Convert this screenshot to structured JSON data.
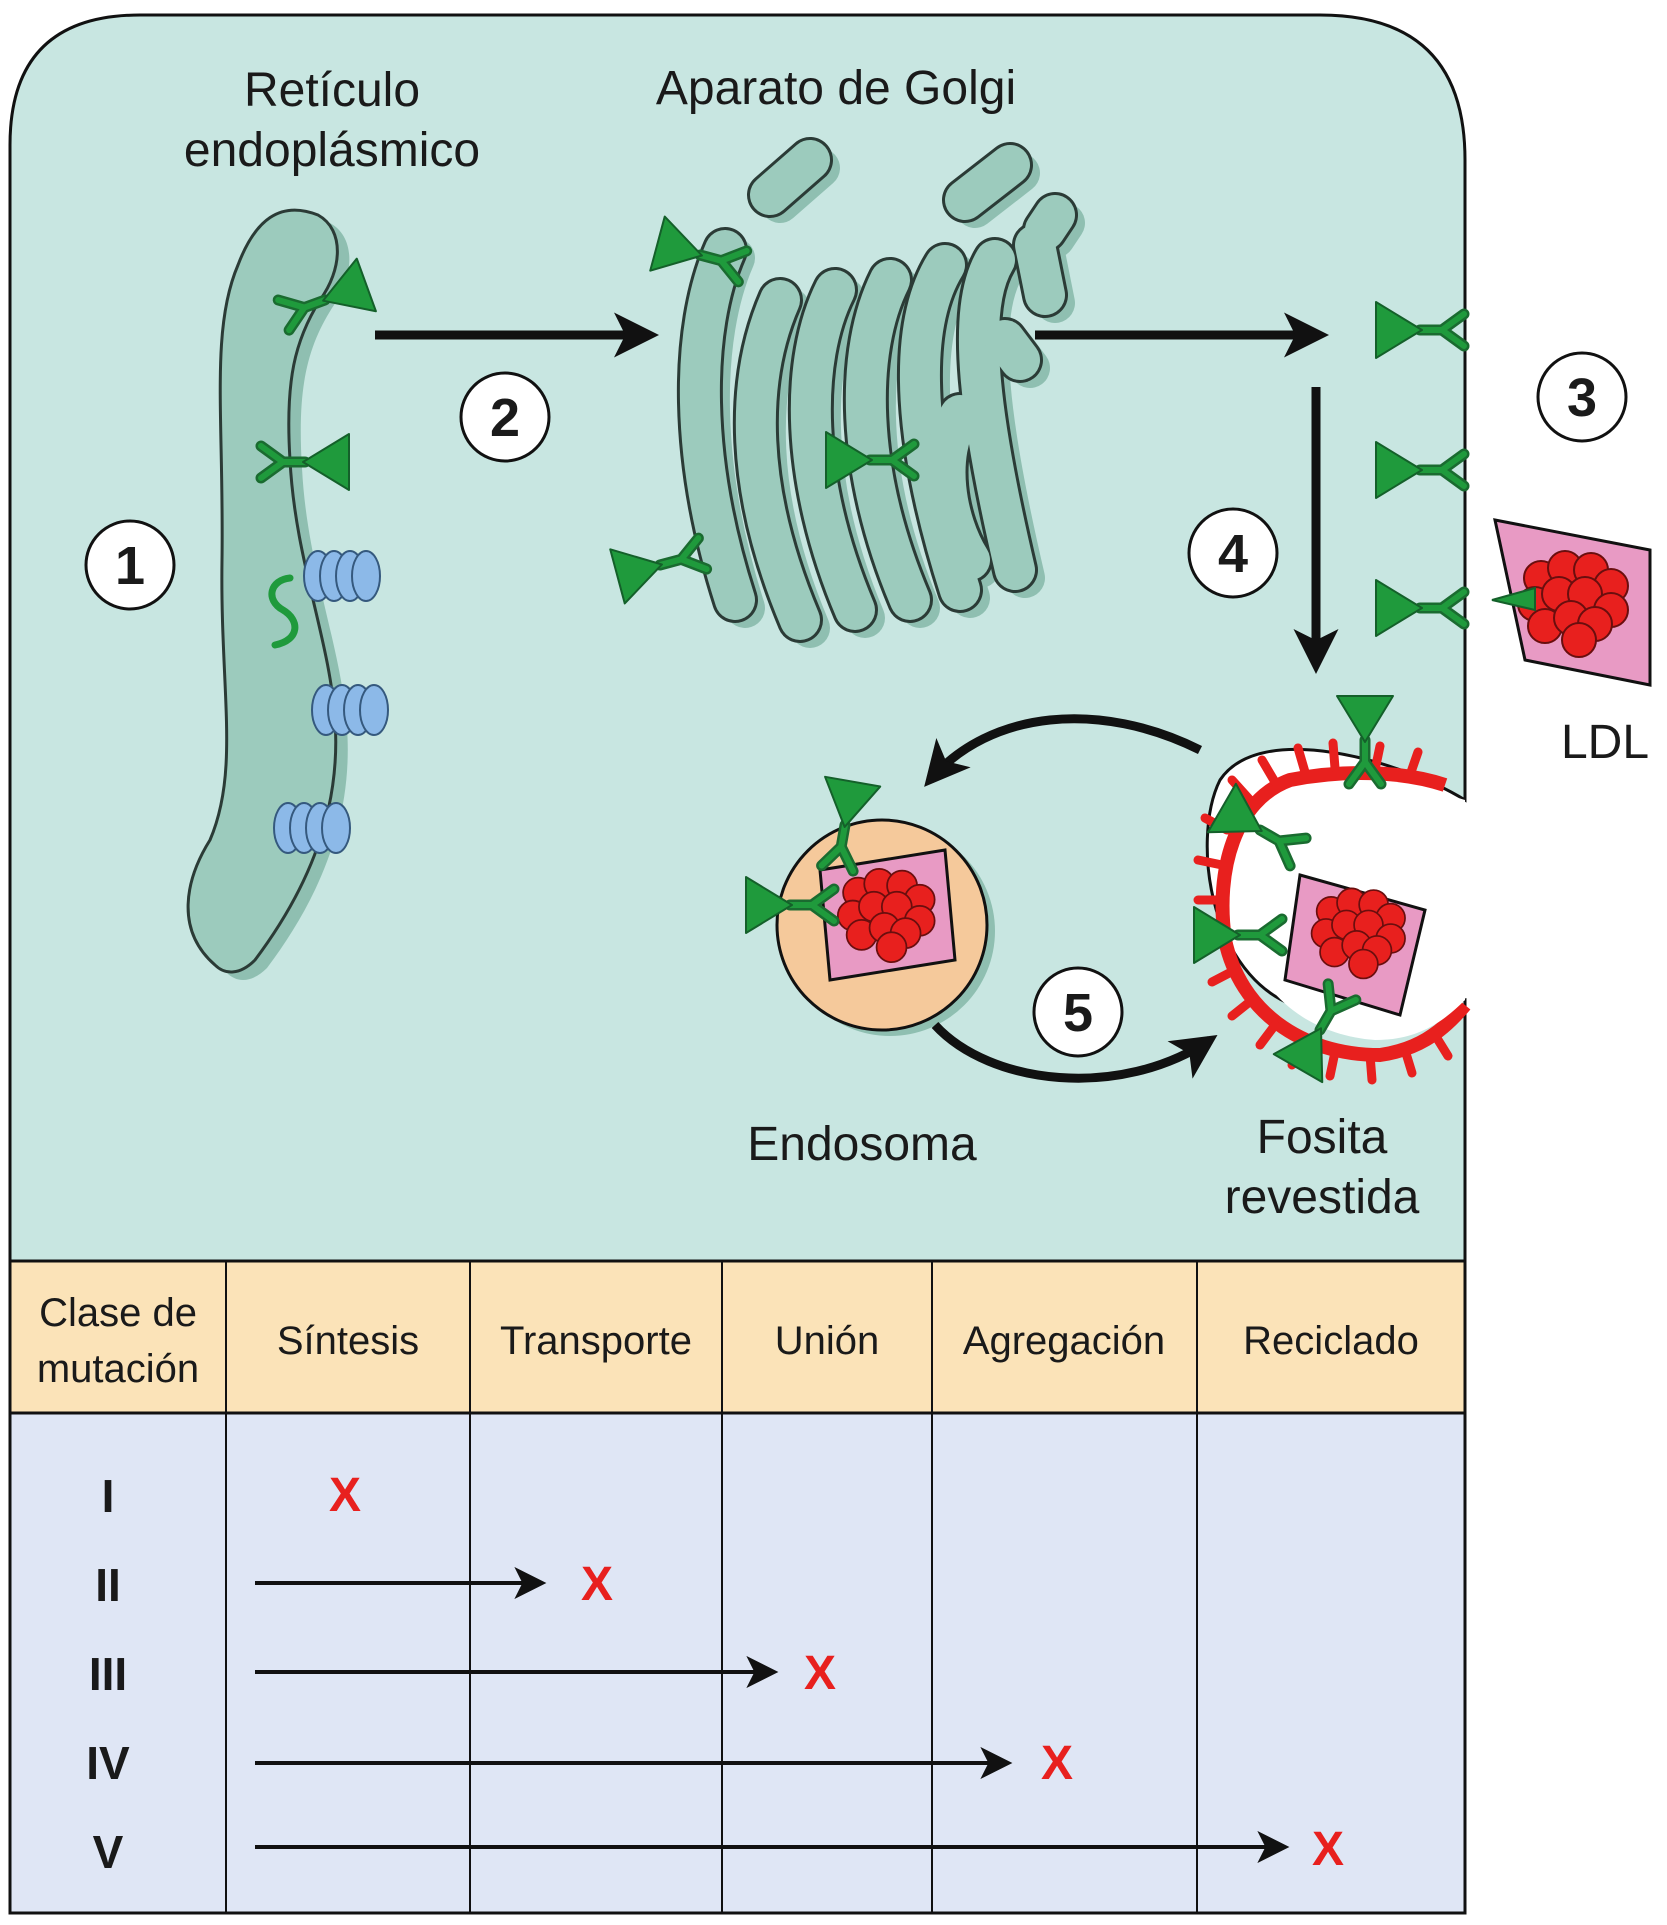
{
  "labels": {
    "er": [
      "Retículo",
      "endoplásmico"
    ],
    "golgi": "Aparato de Golgi",
    "ldl": "LDL",
    "endosome": "Endosoma",
    "pit": [
      "Fosita",
      "revestida"
    ]
  },
  "steps": [
    "1",
    "2",
    "3",
    "4",
    "5"
  ],
  "table": {
    "corner": [
      "Clase de",
      "mutación"
    ],
    "headers": [
      "Síntesis",
      "Transporte",
      "Unión",
      "Agregación",
      "Reciclado"
    ],
    "rows": [
      {
        "class": "I",
        "blocked_at": "Síntesis"
      },
      {
        "class": "II",
        "blocked_at": "Transporte"
      },
      {
        "class": "III",
        "blocked_at": "Unión"
      },
      {
        "class": "IV",
        "blocked_at": "Agregación"
      },
      {
        "class": "V",
        "blocked_at": "Reciclado"
      }
    ],
    "block_mark": "X"
  },
  "colors": {
    "cytoplasm": "#c8e6e1",
    "organelle": "#9ccbbd",
    "receptor": "#1f9a3c",
    "ribosome": "#8cb9e8",
    "ldl_core": "#e8201e",
    "ldl_shell": "#e89ac4",
    "endosome": "#f5c99b",
    "coat": "#e8201e",
    "table_header": "#fbe3b8",
    "table_body": "#dfe6f5"
  }
}
